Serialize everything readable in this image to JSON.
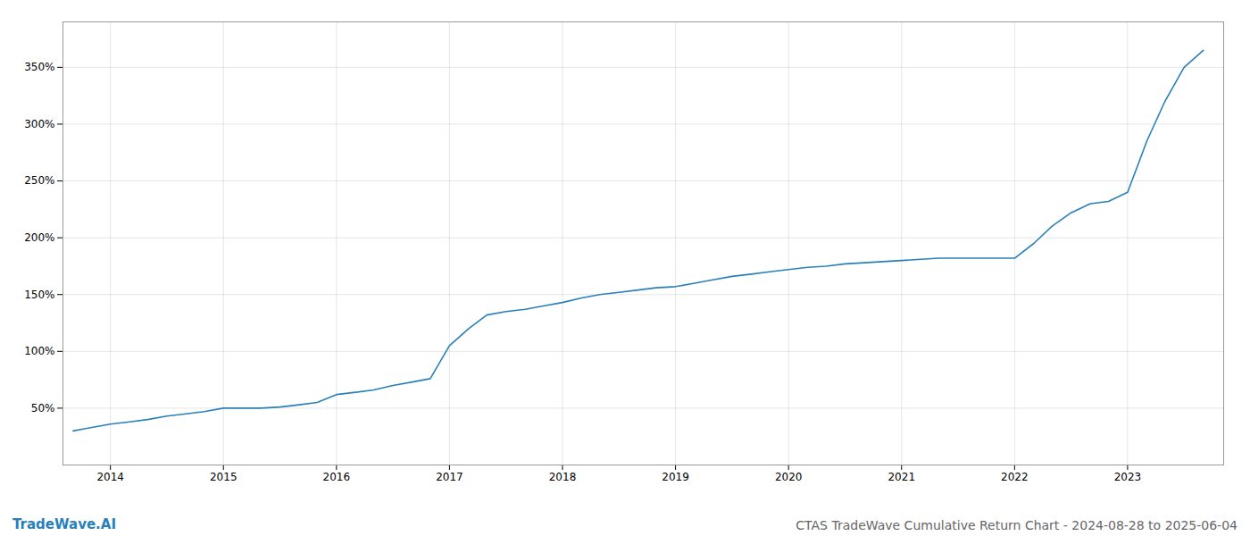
{
  "chart_data": {
    "type": "line",
    "title": "CTAS TradeWave Cumulative Return Chart - 2024-08-28 to 2025-06-04",
    "annotations": [
      "TradeWave.AI"
    ],
    "color": "#2980b9",
    "grid": true,
    "x": [
      2013.67,
      2013.78,
      2013.89,
      2014.0,
      2014.17,
      2014.33,
      2014.5,
      2014.67,
      2014.83,
      2015.0,
      2015.17,
      2015.33,
      2015.5,
      2015.67,
      2015.83,
      2016.0,
      2016.17,
      2016.33,
      2016.5,
      2016.67,
      2016.83,
      2017.0,
      2017.17,
      2017.33,
      2017.5,
      2017.67,
      2017.83,
      2018.0,
      2018.17,
      2018.33,
      2018.5,
      2018.67,
      2018.83,
      2019.0,
      2019.17,
      2019.33,
      2019.5,
      2019.67,
      2019.83,
      2020.0,
      2020.17,
      2020.33,
      2020.5,
      2020.67,
      2020.83,
      2021.0,
      2021.17,
      2021.33,
      2021.5,
      2021.67,
      2021.83,
      2022.0,
      2022.17,
      2022.33,
      2022.5,
      2022.67,
      2022.83,
      2023.0,
      2023.17,
      2023.33,
      2023.5,
      2023.67
    ],
    "values": [
      30,
      32,
      34,
      36,
      38,
      40,
      43,
      45,
      47,
      50,
      50,
      50,
      51,
      53,
      55,
      62,
      64,
      66,
      70,
      73,
      76,
      105,
      120,
      132,
      135,
      137,
      140,
      143,
      147,
      150,
      152,
      154,
      156,
      157,
      160,
      163,
      166,
      168,
      170,
      172,
      174,
      175,
      177,
      178,
      179,
      180,
      181,
      182,
      182,
      182,
      182,
      182,
      195,
      210,
      222,
      230,
      232,
      240,
      285,
      320,
      350,
      365
    ],
    "xlim": [
      2013.58,
      2023.85
    ],
    "xticks": [
      2014,
      2015,
      2016,
      2017,
      2018,
      2019,
      2020,
      2021,
      2022,
      2023
    ],
    "ylim": [
      0,
      390
    ],
    "yticks": [
      {
        "value": 50,
        "label": "50%"
      },
      {
        "value": 100,
        "label": "100%"
      },
      {
        "value": 150,
        "label": "150%"
      },
      {
        "value": 200,
        "label": "200%"
      },
      {
        "value": 250,
        "label": "250%"
      },
      {
        "value": 300,
        "label": "300%"
      },
      {
        "value": 350,
        "label": "350%"
      }
    ]
  }
}
